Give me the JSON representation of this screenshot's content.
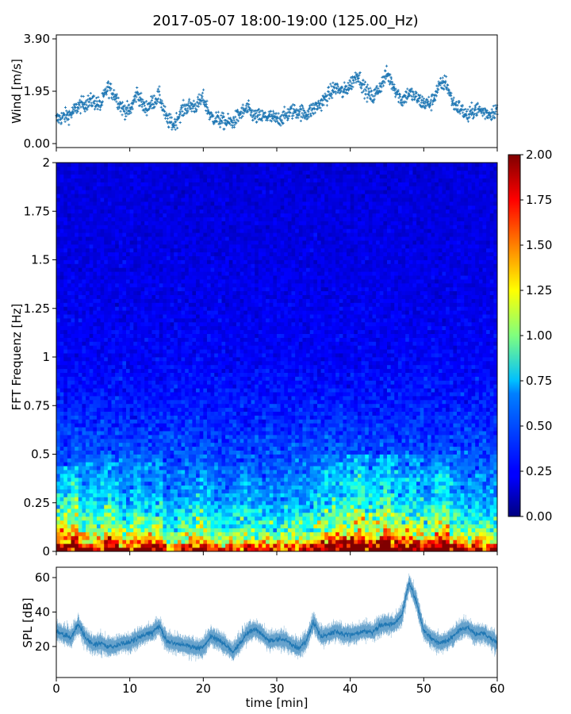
{
  "title": "2017-05-07 18:00-19:00 (125.00_Hz)",
  "colors": {
    "series": "#1f77b4",
    "colormap": "jet"
  },
  "chart_data": [
    {
      "type": "scatter",
      "panel": "wind",
      "ylabel": "Wind [m/s]",
      "xlabel": "",
      "xlim": [
        0,
        60
      ],
      "ylim": [
        0,
        3.9
      ],
      "yticks": [
        "0.00",
        "1.95",
        "3.90"
      ],
      "marker": "+",
      "x_unit": "min",
      "series": [
        {
          "x": [
            0,
            1,
            2,
            3,
            4,
            5,
            6,
            7,
            8,
            9,
            10,
            11,
            12,
            13,
            14,
            15,
            16,
            17,
            18,
            19,
            20,
            21,
            22,
            23,
            24,
            25,
            26,
            27,
            28,
            29,
            30,
            31,
            32,
            33,
            34,
            35,
            36,
            37,
            38,
            39,
            40,
            41,
            42,
            43,
            44,
            45,
            46,
            47,
            48,
            49,
            50,
            51,
            52,
            53,
            54,
            55,
            56,
            57,
            58,
            59,
            60
          ],
          "values": [
            0.9,
            1.0,
            1.1,
            1.4,
            1.5,
            1.6,
            1.4,
            2.1,
            1.8,
            1.3,
            1.2,
            1.9,
            1.3,
            1.5,
            1.8,
            0.9,
            0.7,
            1.2,
            1.4,
            1.4,
            1.7,
            1.0,
            0.9,
            0.8,
            0.8,
            1.1,
            1.3,
            1.0,
            1.0,
            1.0,
            0.9,
            1.0,
            1.2,
            1.2,
            1.1,
            1.3,
            1.5,
            1.8,
            2.1,
            1.9,
            2.2,
            2.6,
            2.0,
            1.7,
            2.1,
            2.6,
            2.1,
            1.6,
            1.9,
            1.7,
            1.5,
            1.5,
            2.1,
            2.3,
            1.5,
            1.3,
            1.0,
            1.3,
            1.2,
            1.1,
            1.3
          ]
        }
      ]
    },
    {
      "type": "heatmap",
      "panel": "spectrogram",
      "ylabel": "FFT Frequenz [Hz]",
      "xlabel": "",
      "xlim": [
        0,
        60
      ],
      "ylim": [
        0,
        2
      ],
      "yticks": [
        "0",
        "0.25",
        "0.5",
        "0.75",
        "1",
        "1.25",
        "1.5",
        "1.75",
        "2"
      ],
      "colorbar": {
        "range": [
          0,
          2
        ],
        "ticks": [
          "0.00",
          "0.25",
          "0.50",
          "0.75",
          "1.00",
          "1.25",
          "1.50",
          "1.75",
          "2.00"
        ]
      },
      "profile_frequency_hz": [
        0,
        0.05,
        0.1,
        0.25,
        0.5,
        0.75,
        1,
        1.5,
        2
      ],
      "profile_level": [
        1.9,
        1.3,
        0.95,
        0.6,
        0.4,
        0.3,
        0.24,
        0.2,
        0.18
      ]
    },
    {
      "type": "line",
      "panel": "spl",
      "ylabel": "SPL [dB]",
      "xlabel": "time [min]",
      "xlim": [
        0,
        60
      ],
      "ylim": [
        2,
        66
      ],
      "xticks": [
        "0",
        "10",
        "20",
        "30",
        "40",
        "50",
        "60"
      ],
      "yticks": [
        "20",
        "40",
        "60"
      ],
      "series": [
        {
          "x": [
            0,
            1,
            2,
            3,
            4,
            5,
            6,
            7,
            8,
            9,
            10,
            11,
            12,
            13,
            14,
            15,
            16,
            17,
            18,
            19,
            20,
            21,
            22,
            23,
            24,
            25,
            26,
            27,
            28,
            29,
            30,
            31,
            32,
            33,
            34,
            35,
            36,
            37,
            38,
            39,
            40,
            41,
            42,
            43,
            44,
            45,
            46,
            47,
            48,
            49,
            50,
            51,
            52,
            53,
            54,
            55,
            56,
            57,
            58,
            59,
            60
          ],
          "values": [
            29,
            27,
            25,
            33,
            25,
            21,
            22,
            20,
            20,
            22,
            22,
            25,
            27,
            28,
            32,
            23,
            22,
            21,
            20,
            19,
            20,
            26,
            24,
            21,
            17,
            22,
            28,
            30,
            27,
            23,
            24,
            24,
            21,
            19,
            23,
            34,
            26,
            27,
            29,
            27,
            27,
            28,
            29,
            28,
            32,
            33,
            33,
            38,
            57,
            46,
            29,
            25,
            22,
            23,
            26,
            30,
            31,
            27,
            28,
            25,
            22
          ]
        }
      ]
    }
  ]
}
